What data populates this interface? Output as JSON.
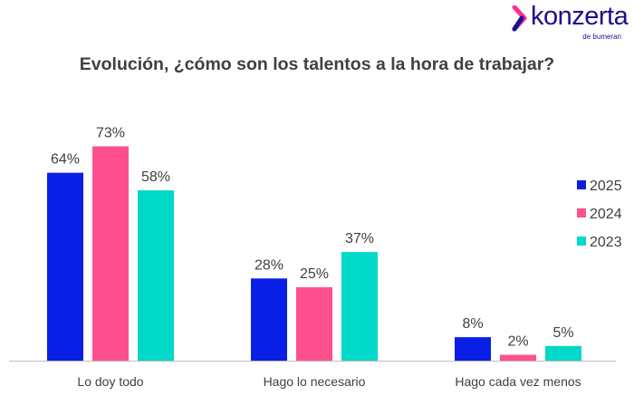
{
  "logo": {
    "brand": "konzerta",
    "sub": "de bumeran",
    "colors": {
      "magenta": "#ff2d8a",
      "navy": "#1a0f8f"
    }
  },
  "chart_data": {
    "type": "bar",
    "title": "Evolución, ¿cómo son los talentos a la hora de trabajar?",
    "categories": [
      "Lo doy todo",
      "Hago lo necesario",
      "Hago cada vez menos"
    ],
    "series": [
      {
        "name": "2025",
        "values": [
          64,
          28,
          8
        ],
        "labels": [
          "64%",
          "28%",
          "8%"
        ],
        "color": "#0a1fe6"
      },
      {
        "name": "2024",
        "values": [
          73,
          25,
          2
        ],
        "labels": [
          "73%",
          "25%",
          "2%"
        ],
        "color": "#ff4f8f"
      },
      {
        "name": "2023",
        "values": [
          58,
          37,
          5
        ],
        "labels": [
          "58%",
          "37%",
          "5%"
        ],
        "color": "#00d8c8"
      }
    ],
    "ylim": [
      0,
      100
    ],
    "grid": false,
    "legend_position": "right"
  }
}
